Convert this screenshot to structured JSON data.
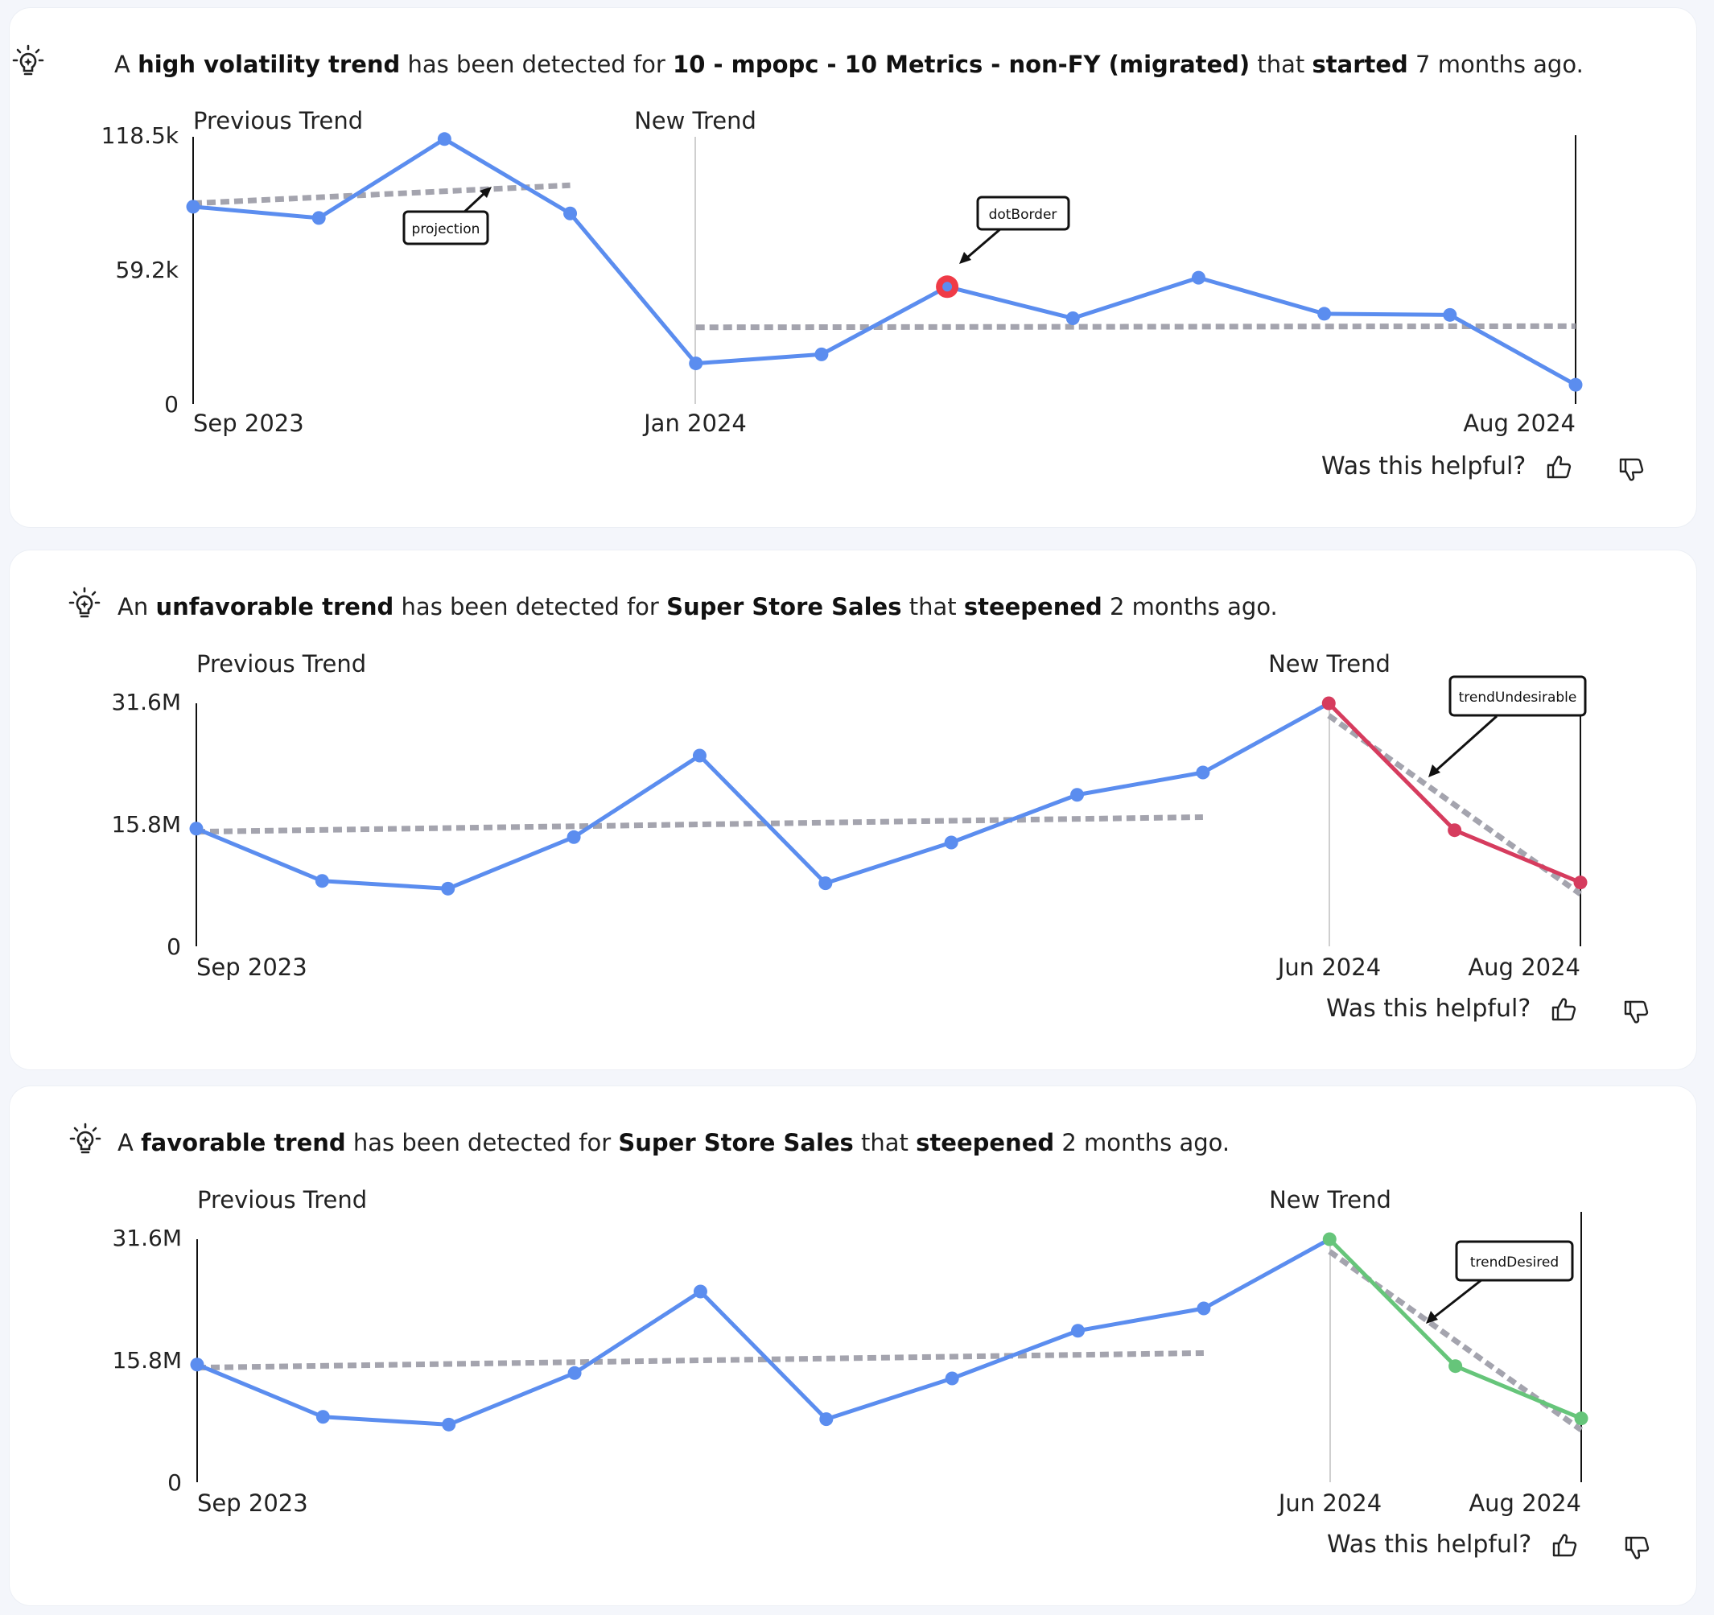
{
  "colors": {
    "line": "#5b8def",
    "projection": "#a4a4ae",
    "undesirable": "#d63c5e",
    "desired": "#66c57a",
    "highlight": "#ef3b47",
    "axis": "#111111",
    "divider": "#cfcfcf"
  },
  "feedback": {
    "question": "Was this helpful?",
    "up_icon": "thumbs-up-icon",
    "down_icon": "thumbs-down-icon"
  },
  "insights": [
    {
      "headline": [
        {
          "t": "A ",
          "b": false
        },
        {
          "t": "high volatility trend",
          "b": true
        },
        {
          "t": " has been detected for ",
          "b": false
        },
        {
          "t": "10 - mpopc - 10 Metrics - non-FY (migrated)",
          "b": true
        },
        {
          "t": " that ",
          "b": false
        },
        {
          "t": "started",
          "b": true
        },
        {
          "t": " 7 months ago.",
          "b": false
        }
      ],
      "labels": {
        "previous": "Previous Trend",
        "new": "New Trend"
      },
      "y_ticks": [
        "118.5k",
        "59.2k",
        "0"
      ],
      "x_ticks": [
        "Sep 2023",
        "Jan 2024",
        "Aug 2024"
      ],
      "annotations": [
        "projection",
        "dotBorder"
      ],
      "chart_data": {
        "type": "line",
        "x": [
          "Sep 2023",
          "Oct 2023",
          "Nov 2023",
          "Dec 2023",
          "Jan 2024",
          "Feb 2024",
          "Mar 2024",
          "Apr 2024",
          "May 2024",
          "Jun 2024",
          "Jul 2024",
          "Aug 2024"
        ],
        "values": [
          87500,
          82500,
          117500,
          84500,
          18000,
          22000,
          52000,
          38000,
          56000,
          40000,
          39500,
          8500
        ],
        "ylim": [
          0,
          118500
        ],
        "trend_break": "Jan 2024",
        "previous_projection": [
          [
            0,
            89000
          ],
          [
            3,
            97000
          ]
        ],
        "new_projection": [
          [
            4,
            34000
          ],
          [
            11,
            34500
          ]
        ],
        "highlighted_point": 6
      }
    },
    {
      "headline": [
        {
          "t": "An ",
          "b": false
        },
        {
          "t": "unfavorable trend",
          "b": true
        },
        {
          "t": " has been detected for ",
          "b": false
        },
        {
          "t": "Super Store Sales",
          "b": true
        },
        {
          "t": " that ",
          "b": false
        },
        {
          "t": "steepened",
          "b": true
        },
        {
          "t": " 2 months ago.",
          "b": false
        }
      ],
      "labels": {
        "previous": "Previous Trend",
        "new": "New Trend"
      },
      "y_ticks": [
        "31.6M",
        "15.8M",
        "0"
      ],
      "x_ticks": [
        "Sep 2023",
        "Jun 2024",
        "Aug 2024"
      ],
      "annotations": [
        "trendUndesirable"
      ],
      "chart_data": {
        "type": "line",
        "x": [
          "Sep 2023",
          "Oct 2023",
          "Nov 2023",
          "Dec 2023",
          "Jan 2024",
          "Feb 2024",
          "Mar 2024",
          "Apr 2024",
          "May 2024",
          "Jun 2024",
          "Jul 2024",
          "Aug 2024"
        ],
        "values": [
          15300,
          8500,
          7500,
          14200,
          24800,
          8200,
          13500,
          19700,
          22600,
          31600,
          15100,
          8300
        ],
        "unit": "thousands",
        "ylim": [
          0,
          31600
        ],
        "trend_break": "Jun 2024",
        "new_segment_style": "undesirable",
        "previous_projection": [
          [
            0,
            14900
          ],
          [
            8,
            16800
          ]
        ],
        "new_projection": [
          [
            9,
            30000
          ],
          [
            11,
            6800
          ]
        ]
      }
    },
    {
      "headline": [
        {
          "t": "A ",
          "b": false
        },
        {
          "t": "favorable trend",
          "b": true
        },
        {
          "t": " has been detected for ",
          "b": false
        },
        {
          "t": "Super Store Sales",
          "b": true
        },
        {
          "t": " that ",
          "b": false
        },
        {
          "t": "steepened",
          "b": true
        },
        {
          "t": " 2 months ago.",
          "b": false
        }
      ],
      "labels": {
        "previous": "Previous Trend",
        "new": "New Trend"
      },
      "y_ticks": [
        "31.6M",
        "15.8M",
        "0"
      ],
      "x_ticks": [
        "Sep 2023",
        "Jun 2024",
        "Aug 2024"
      ],
      "annotations": [
        "trendDesired"
      ],
      "chart_data": {
        "type": "line",
        "x": [
          "Sep 2023",
          "Oct 2023",
          "Nov 2023",
          "Dec 2023",
          "Jan 2024",
          "Feb 2024",
          "Mar 2024",
          "Apr 2024",
          "May 2024",
          "Jun 2024",
          "Jul 2024",
          "Aug 2024"
        ],
        "values": [
          15300,
          8500,
          7500,
          14200,
          24800,
          8200,
          13500,
          19700,
          22600,
          31600,
          15100,
          8300
        ],
        "unit": "thousands",
        "ylim": [
          0,
          31600
        ],
        "trend_break": "Jun 2024",
        "new_segment_style": "desired",
        "previous_projection": [
          [
            0,
            14900
          ],
          [
            8,
            16800
          ]
        ],
        "new_projection": [
          [
            9,
            30000
          ],
          [
            11,
            6800
          ]
        ]
      }
    }
  ]
}
